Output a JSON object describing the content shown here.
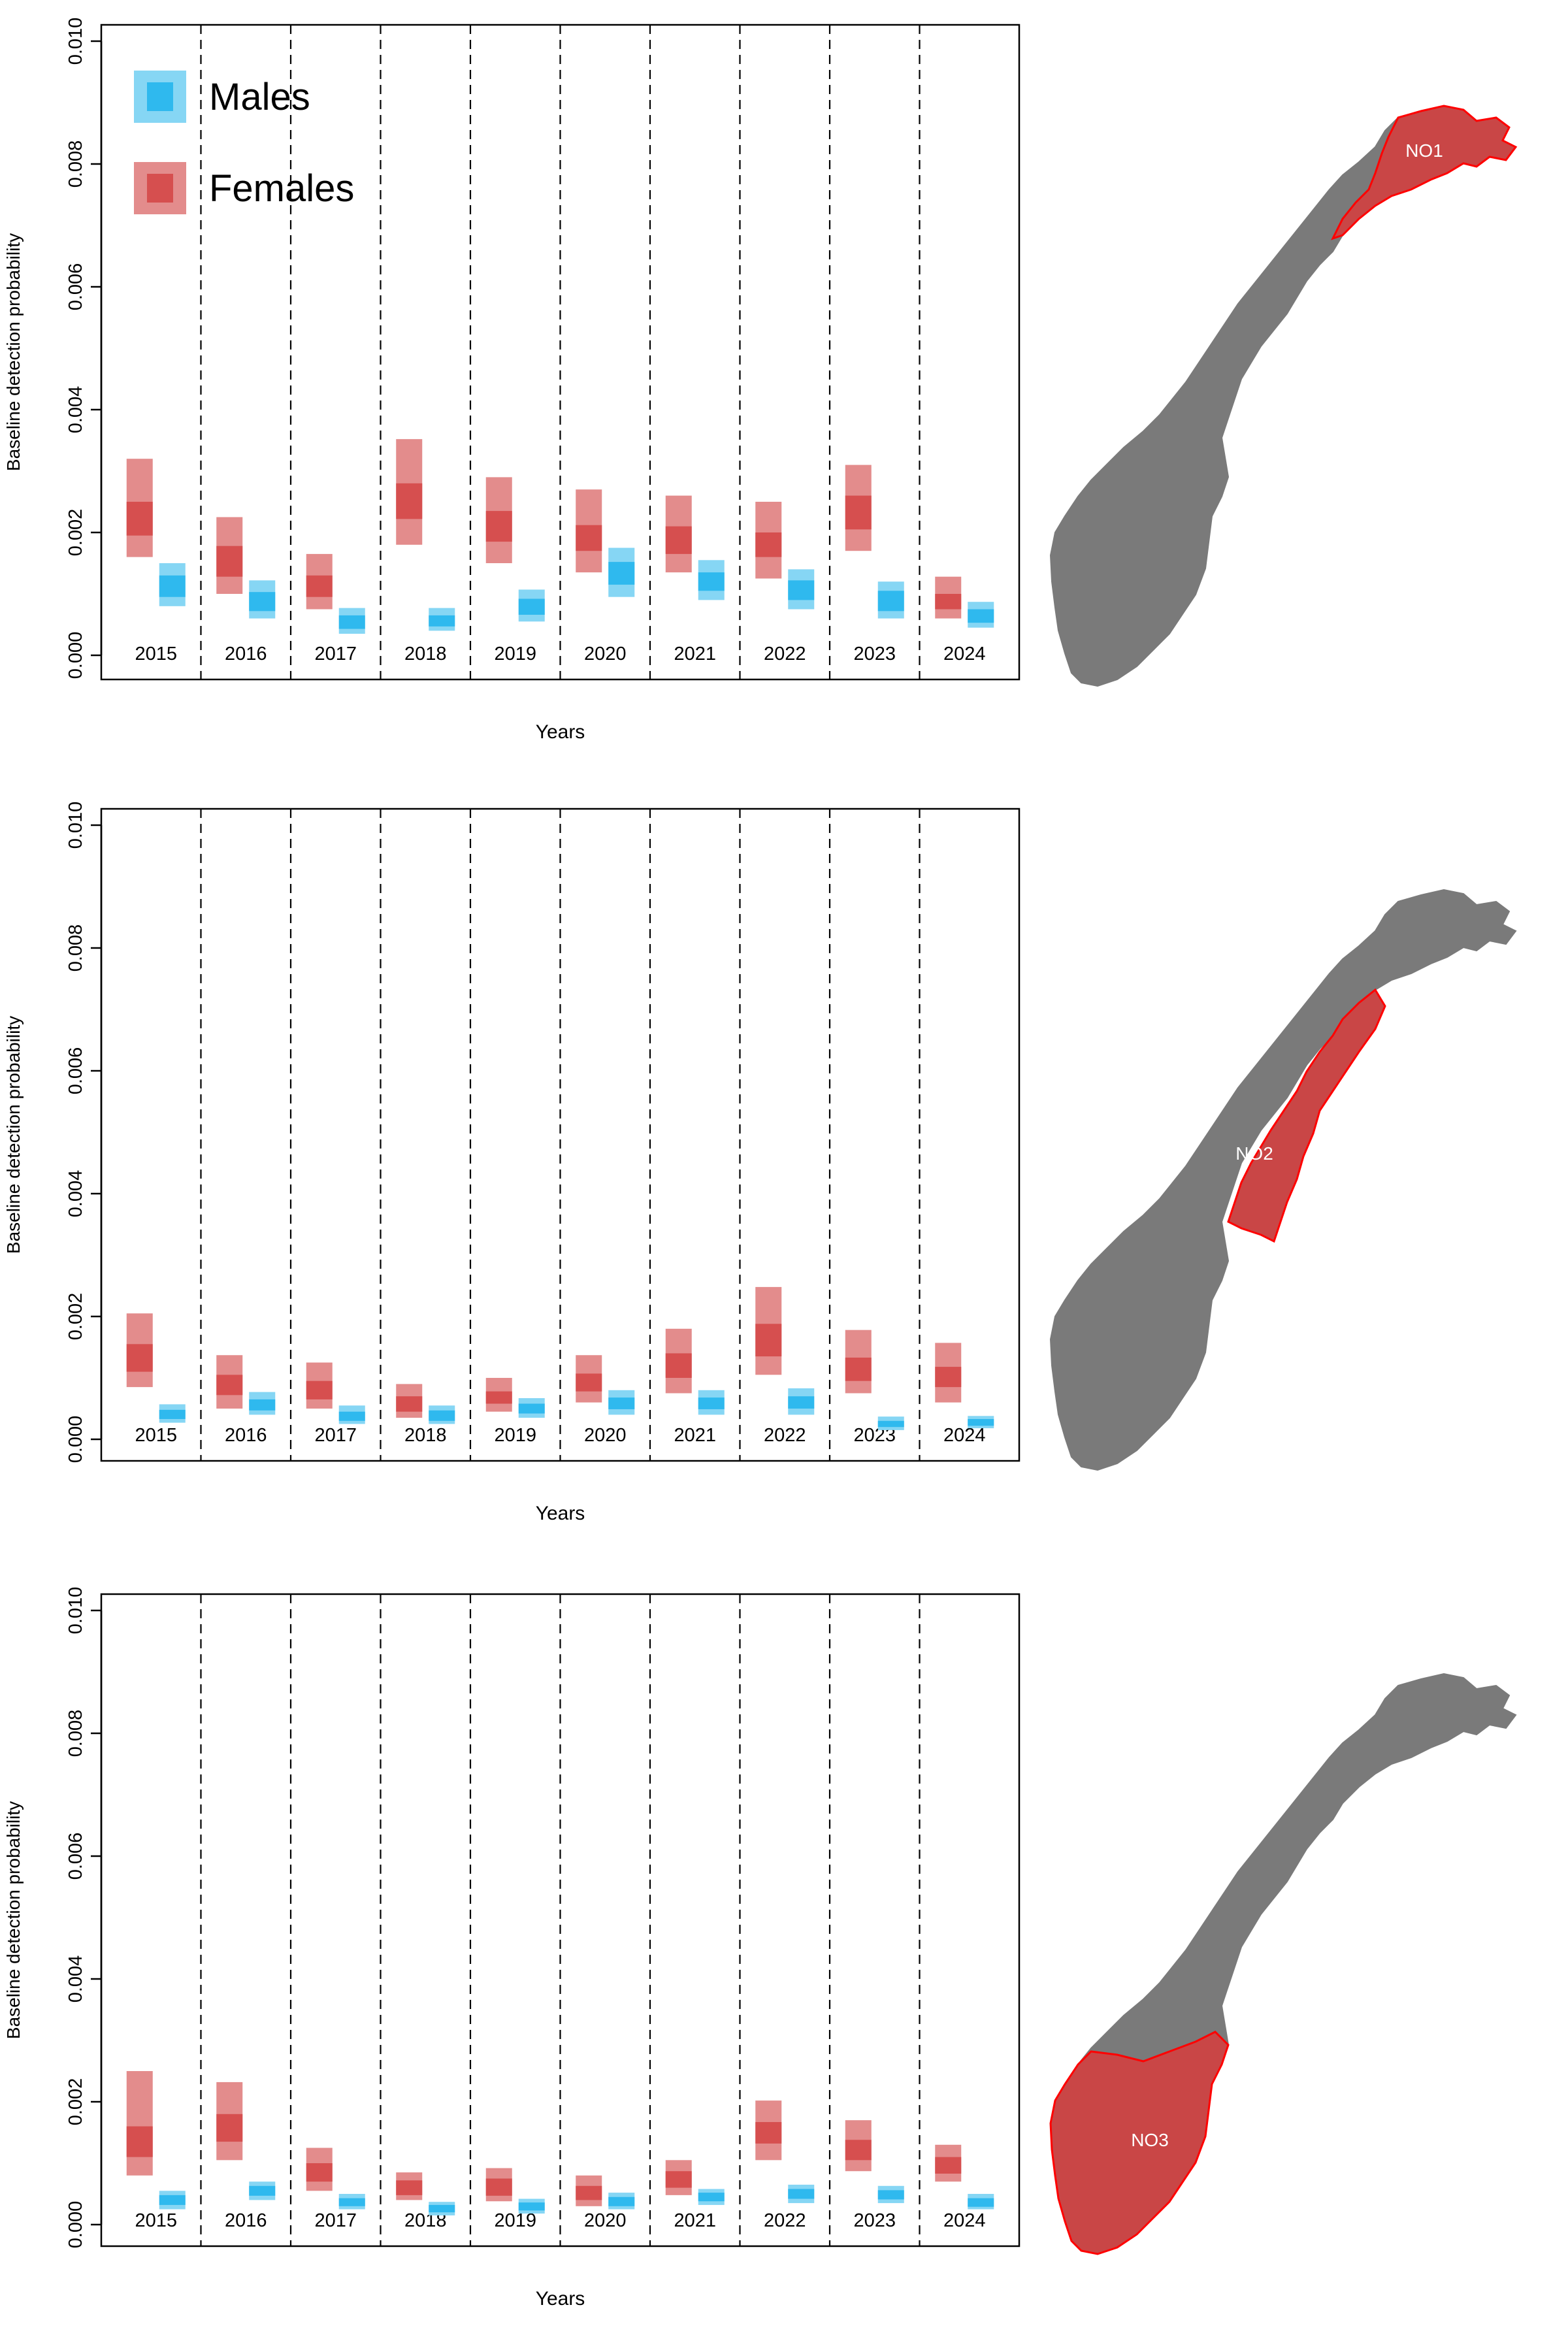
{
  "chart_data": [
    {
      "type": "box",
      "xlabel": "Years",
      "ylabel": "Baseline detection probability",
      "ylim": [
        0,
        0.01
      ],
      "yticks": [
        "0.000",
        "0.002",
        "0.004",
        "0.006",
        "0.008",
        "0.010"
      ],
      "categories": [
        "2015",
        "2016",
        "2017",
        "2018",
        "2019",
        "2020",
        "2021",
        "2022",
        "2023",
        "2024"
      ],
      "legend": {
        "placement": "top-left",
        "entries": [
          "Males",
          "Females"
        ]
      },
      "region": "NO1",
      "series": [
        {
          "name": "Females",
          "color": "#d94f4f",
          "outer": [
            [
              0.0016,
              0.0032
            ],
            [
              0.001,
              0.00225
            ],
            [
              0.00075,
              0.00165
            ],
            [
              0.0018,
              0.00352
            ],
            [
              0.0015,
              0.0029
            ],
            [
              0.00135,
              0.0027
            ],
            [
              0.00135,
              0.0026
            ],
            [
              0.00125,
              0.0025
            ],
            [
              0.0017,
              0.0031
            ],
            [
              0.0006,
              0.00128
            ]
          ],
          "inner": [
            [
              0.00195,
              0.0025
            ],
            [
              0.00128,
              0.00178
            ],
            [
              0.00095,
              0.0013
            ],
            [
              0.00222,
              0.0028
            ],
            [
              0.00185,
              0.00235
            ],
            [
              0.0017,
              0.00212
            ],
            [
              0.00165,
              0.0021
            ],
            [
              0.0016,
              0.002
            ],
            [
              0.00205,
              0.0026
            ],
            [
              0.00075,
              0.001
            ]
          ]
        },
        {
          "name": "Males",
          "color": "#3cbfef",
          "outer": [
            [
              0.0008,
              0.0015
            ],
            [
              0.0006,
              0.00122
            ],
            [
              0.00035,
              0.00077
            ],
            [
              0.0004,
              0.00077
            ],
            [
              0.00055,
              0.00107
            ],
            [
              0.00095,
              0.00175
            ],
            [
              0.0009,
              0.00155
            ],
            [
              0.00075,
              0.0014
            ],
            [
              0.0006,
              0.0012
            ],
            [
              0.00045,
              0.00087
            ]
          ],
          "inner": [
            [
              0.00095,
              0.0013
            ],
            [
              0.00072,
              0.00103
            ],
            [
              0.00043,
              0.00065
            ],
            [
              0.00047,
              0.00065
            ],
            [
              0.00066,
              0.00092
            ],
            [
              0.00115,
              0.00152
            ],
            [
              0.00105,
              0.00135
            ],
            [
              0.0009,
              0.00122
            ],
            [
              0.00072,
              0.00105
            ],
            [
              0.00053,
              0.00075
            ]
          ]
        }
      ]
    },
    {
      "type": "box",
      "xlabel": "Years",
      "ylabel": "Baseline detection probability",
      "ylim": [
        0,
        0.01
      ],
      "yticks": [
        "0.000",
        "0.002",
        "0.004",
        "0.006",
        "0.008",
        "0.010"
      ],
      "categories": [
        "2015",
        "2016",
        "2017",
        "2018",
        "2019",
        "2020",
        "2021",
        "2022",
        "2023",
        "2024"
      ],
      "region": "NO2",
      "series": [
        {
          "name": "Females",
          "color": "#d94f4f",
          "outer": [
            [
              0.00085,
              0.00205
            ],
            [
              0.0005,
              0.00137
            ],
            [
              0.0005,
              0.00125
            ],
            [
              0.00035,
              0.0009
            ],
            [
              0.00045,
              0.001
            ],
            [
              0.0006,
              0.00137
            ],
            [
              0.00075,
              0.0018
            ],
            [
              0.00105,
              0.00248
            ],
            [
              0.00075,
              0.00178
            ],
            [
              0.0006,
              0.00157
            ]
          ],
          "inner": [
            [
              0.0011,
              0.00155
            ],
            [
              0.00072,
              0.00105
            ],
            [
              0.00065,
              0.00095
            ],
            [
              0.00045,
              0.0007
            ],
            [
              0.00058,
              0.00078
            ],
            [
              0.00078,
              0.00107
            ],
            [
              0.001,
              0.0014
            ],
            [
              0.00135,
              0.00188
            ],
            [
              0.00095,
              0.00133
            ],
            [
              0.00085,
              0.00118
            ]
          ]
        },
        {
          "name": "Males",
          "color": "#3cbfef",
          "outer": [
            [
              0.00027,
              0.00057
            ],
            [
              0.0004,
              0.00077
            ],
            [
              0.00025,
              0.00055
            ],
            [
              0.00025,
              0.00055
            ],
            [
              0.00035,
              0.00067
            ],
            [
              0.0004,
              0.0008
            ],
            [
              0.0004,
              0.0008
            ],
            [
              0.0004,
              0.00083
            ],
            [
              0.00015,
              0.00037
            ],
            [
              0.00018,
              0.00038
            ]
          ],
          "inner": [
            [
              0.00033,
              0.00048
            ],
            [
              0.00047,
              0.00065
            ],
            [
              0.0003,
              0.00045
            ],
            [
              0.0003,
              0.00047
            ],
            [
              0.00042,
              0.00058
            ],
            [
              0.00049,
              0.00068
            ],
            [
              0.00049,
              0.00068
            ],
            [
              0.0005,
              0.0007
            ],
            [
              0.0002,
              0.0003
            ],
            [
              0.00022,
              0.00033
            ]
          ]
        }
      ]
    },
    {
      "type": "box",
      "xlabel": "Years",
      "ylabel": "Baseline detection probability",
      "ylim": [
        0,
        0.01
      ],
      "yticks": [
        "0.000",
        "0.002",
        "0.004",
        "0.006",
        "0.008",
        "0.010"
      ],
      "categories": [
        "2015",
        "2016",
        "2017",
        "2018",
        "2019",
        "2020",
        "2021",
        "2022",
        "2023",
        "2024"
      ],
      "region": "NO3",
      "series": [
        {
          "name": "Females",
          "color": "#d94f4f",
          "outer": [
            [
              0.0008,
              0.0025
            ],
            [
              0.00105,
              0.00232
            ],
            [
              0.00055,
              0.00125
            ],
            [
              0.0004,
              0.00085
            ],
            [
              0.00038,
              0.00092
            ],
            [
              0.0003,
              0.0008
            ],
            [
              0.00048,
              0.00105
            ],
            [
              0.00105,
              0.00202
            ],
            [
              0.00087,
              0.0017
            ],
            [
              0.0007,
              0.0013
            ]
          ],
          "inner": [
            [
              0.0011,
              0.0016
            ],
            [
              0.00135,
              0.0018
            ],
            [
              0.0007,
              0.001
            ],
            [
              0.00048,
              0.00072
            ],
            [
              0.00047,
              0.00075
            ],
            [
              0.0004,
              0.00063
            ],
            [
              0.0006,
              0.00087
            ],
            [
              0.00132,
              0.00167
            ],
            [
              0.00105,
              0.00138
            ],
            [
              0.00083,
              0.0011
            ]
          ]
        },
        {
          "name": "Males",
          "color": "#3cbfef",
          "outer": [
            [
              0.00025,
              0.00055
            ],
            [
              0.0004,
              0.0007
            ],
            [
              0.00025,
              0.0005
            ],
            [
              0.00015,
              0.00037
            ],
            [
              0.00018,
              0.00042
            ],
            [
              0.00025,
              0.00052
            ],
            [
              0.00032,
              0.00058
            ],
            [
              0.00035,
              0.00065
            ],
            [
              0.00035,
              0.00063
            ],
            [
              0.00025,
              0.0005
            ]
          ],
          "inner": [
            [
              0.00032,
              0.00048
            ],
            [
              0.00047,
              0.00063
            ],
            [
              0.0003,
              0.00043
            ],
            [
              0.0002,
              0.00032
            ],
            [
              0.00023,
              0.00036
            ],
            [
              0.0003,
              0.00045
            ],
            [
              0.00038,
              0.00052
            ],
            [
              0.00042,
              0.00058
            ],
            [
              0.00041,
              0.00056
            ],
            [
              0.00029,
              0.00043
            ]
          ]
        }
      ]
    }
  ]
}
